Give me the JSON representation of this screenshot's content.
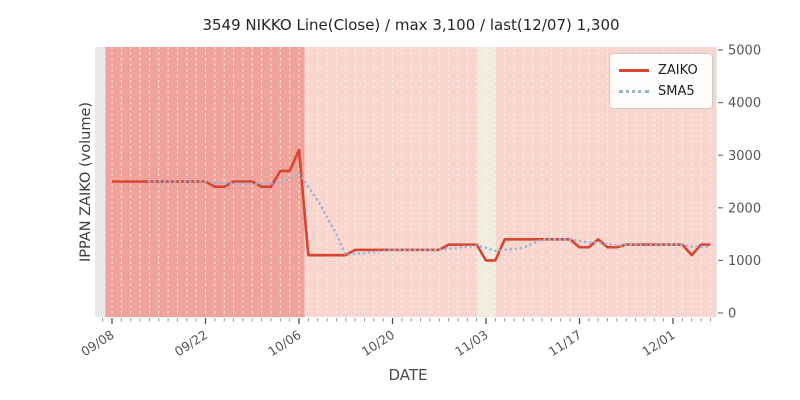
{
  "chart_data": {
    "type": "line",
    "title": "3549 NIKKO Line(Close) / max 3,100 / last(12/07) 1,300",
    "xlabel": "DATE",
    "ylabel": "IPPAN ZAIKO (volume)",
    "ylim": [
      0,
      5000
    ],
    "yticks": [
      0,
      1000,
      2000,
      3000,
      4000,
      5000
    ],
    "xtick_labels": [
      "09/08",
      "09/22",
      "10/06",
      "10/20",
      "11/03",
      "11/17",
      "12/01"
    ],
    "xtick_indices": [
      0,
      10,
      20,
      30,
      40,
      50,
      60
    ],
    "grid": "daily white dashed vertical lines",
    "legend_position": "upper right",
    "x_dates": [
      "09/08",
      "09/11",
      "09/12",
      "09/13",
      "09/14",
      "09/15",
      "09/18",
      "09/19",
      "09/20",
      "09/21",
      "09/22",
      "09/25",
      "09/26",
      "09/27",
      "09/28",
      "09/29",
      "10/02",
      "10/03",
      "10/04",
      "10/05",
      "10/06",
      "10/09",
      "10/10",
      "10/11",
      "10/12",
      "10/13",
      "10/16",
      "10/17",
      "10/18",
      "10/19",
      "10/20",
      "10/23",
      "10/24",
      "10/25",
      "10/26",
      "10/27",
      "10/30",
      "10/31",
      "11/01",
      "11/02",
      "11/03",
      "11/06",
      "11/07",
      "11/08",
      "11/09",
      "11/10",
      "11/13",
      "11/14",
      "11/15",
      "11/16",
      "11/17",
      "11/20",
      "11/21",
      "11/22",
      "11/23",
      "11/24",
      "11/27",
      "11/28",
      "11/29",
      "11/30",
      "12/01",
      "12/04",
      "12/05",
      "12/06",
      "12/07"
    ],
    "series": [
      {
        "name": "ZAIKO",
        "style": "solid",
        "color": "#d9432f",
        "values": [
          2500,
          2500,
          2500,
          2500,
          2500,
          2500,
          2500,
          2500,
          2500,
          2500,
          2500,
          2400,
          2400,
          2500,
          2500,
          2500,
          2400,
          2400,
          2700,
          2700,
          3100,
          1100,
          1100,
          1100,
          1100,
          1100,
          1200,
          1200,
          1200,
          1200,
          1200,
          1200,
          1200,
          1200,
          1200,
          1200,
          1300,
          1300,
          1300,
          1300,
          1000,
          1000,
          1400,
          1400,
          1400,
          1400,
          1400,
          1400,
          1400,
          1400,
          1250,
          1250,
          1400,
          1250,
          1250,
          1300,
          1300,
          1300,
          1300,
          1300,
          1300,
          1300,
          1100,
          1300,
          1300
        ]
      },
      {
        "name": "SMA5",
        "style": "dotted",
        "color": "#9ab4d6",
        "values": [
          null,
          null,
          null,
          null,
          2500,
          2500,
          2500,
          2500,
          2500,
          2500,
          2500,
          2480,
          2460,
          2460,
          2460,
          2460,
          2460,
          2460,
          2500,
          2540,
          2660,
          2400,
          2140,
          1820,
          1500,
          1100,
          1120,
          1140,
          1160,
          1180,
          1200,
          1200,
          1200,
          1200,
          1200,
          1200,
          1220,
          1240,
          1260,
          1280,
          1240,
          1180,
          1200,
          1220,
          1240,
          1320,
          1400,
          1400,
          1400,
          1400,
          1370,
          1340,
          1340,
          1310,
          1280,
          1290,
          1300,
          1280,
          1290,
          1300,
          1300,
          1300,
          1260,
          1260,
          1260
        ]
      }
    ],
    "background_bands": [
      {
        "name": "axes-background",
        "color": "#e9e9e9",
        "from_index": -1.85,
        "to_index": 64.7
      },
      {
        "name": "highlight-early-period",
        "color": "#f0a39a",
        "from_index": -0.7,
        "to_index": 20.6
      },
      {
        "name": "base-period",
        "color": "#f8d5cd",
        "from_index": 20.6,
        "to_index": 64.6
      },
      {
        "name": "highlight-cream-band",
        "color": "#f2ece0",
        "from_index": 39.1,
        "to_index": 41.0
      }
    ],
    "annotations": {
      "max_value": 3100,
      "max_date": "10/06",
      "last_value": 1300,
      "last_date": "12/07"
    }
  },
  "legend": {
    "entries": [
      "ZAIKO",
      "SMA5"
    ]
  }
}
